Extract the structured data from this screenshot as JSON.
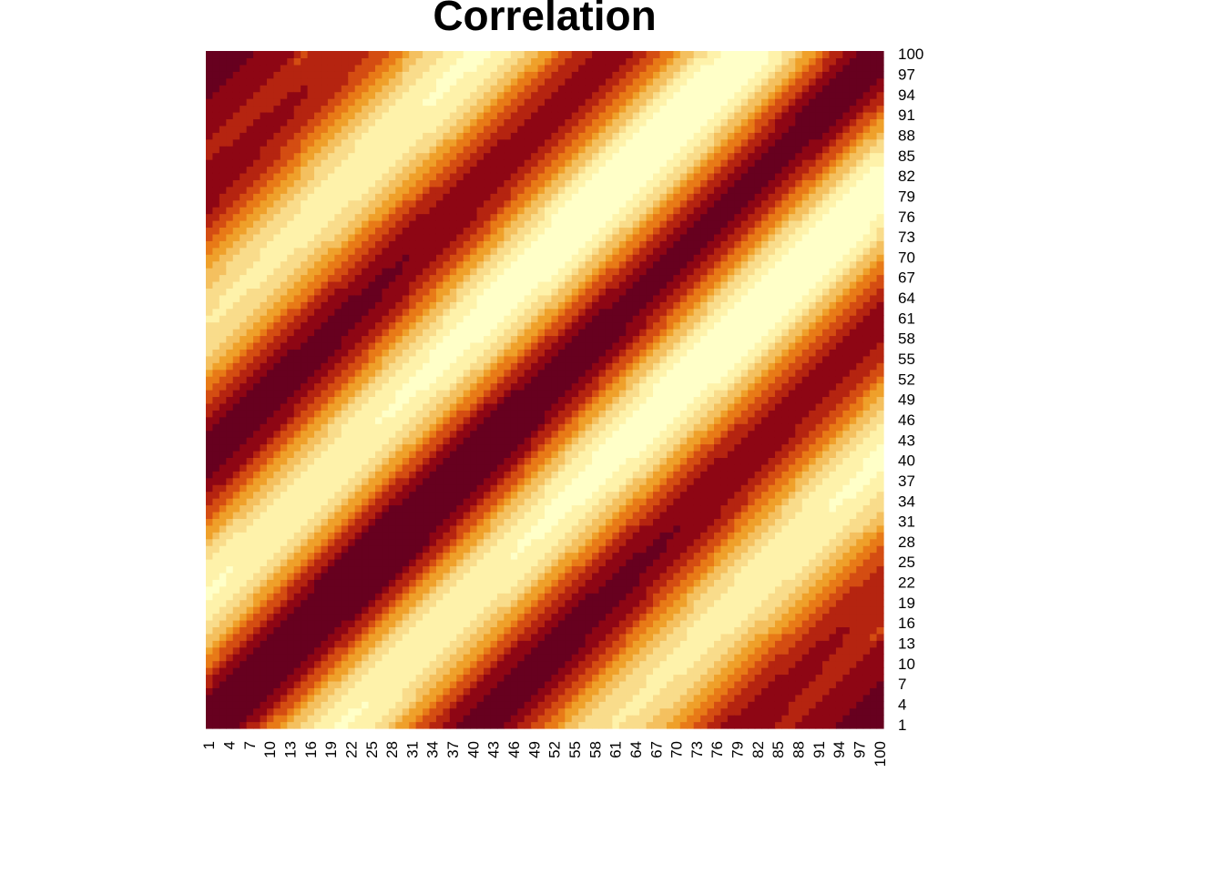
{
  "chart_data": {
    "type": "heatmap",
    "title": "Correlation",
    "xlabel": "",
    "ylabel": "",
    "n": 100,
    "x_tick_labels": [
      "1",
      "4",
      "7",
      "10",
      "13",
      "16",
      "19",
      "22",
      "25",
      "28",
      "31",
      "34",
      "37",
      "40",
      "43",
      "46",
      "49",
      "52",
      "55",
      "58",
      "61",
      "64",
      "67",
      "70",
      "73",
      "76",
      "79",
      "82",
      "85",
      "88",
      "91",
      "94",
      "97",
      "100"
    ],
    "y_tick_labels": [
      "1",
      "4",
      "7",
      "10",
      "13",
      "16",
      "19",
      "22",
      "25",
      "28",
      "31",
      "34",
      "37",
      "40",
      "43",
      "46",
      "49",
      "52",
      "55",
      "58",
      "61",
      "64",
      "67",
      "70",
      "73",
      "76",
      "79",
      "82",
      "85",
      "88",
      "91",
      "94",
      "97",
      "100"
    ],
    "y_axis_side": "right",
    "x_tick_orientation": "vertical",
    "value_range": [
      -1,
      1
    ],
    "palette": [
      "#FFFFC8",
      "#FEF2AA",
      "#F9DC8B",
      "#F4C05F",
      "#EFA02A",
      "#E87A17",
      "#D44D12",
      "#B52410",
      "#8E0614",
      "#67001F"
    ],
    "pattern_description": "Correlation between indices i and j decays with distance |i-j| and oscillates: dark red band on the main diagonal, light bands near |i-j|~20, orange bands near |i-j|~40, light bands near |i-j|~60, orange near |i-j|~80; corners (1,100) and (100,1) dark."
  }
}
